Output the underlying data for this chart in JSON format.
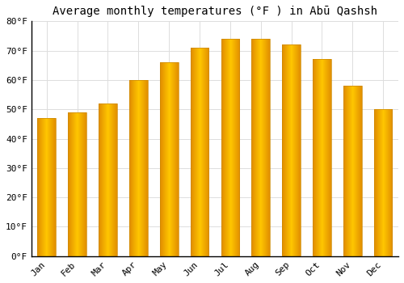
{
  "title": "Average monthly temperatures (°F ) in Abū Qashsh",
  "months": [
    "Jan",
    "Feb",
    "Mar",
    "Apr",
    "May",
    "Jun",
    "Jul",
    "Aug",
    "Sep",
    "Oct",
    "Nov",
    "Dec"
  ],
  "values": [
    47,
    49,
    52,
    60,
    66,
    71,
    74,
    74,
    72,
    67,
    58,
    50
  ],
  "bar_color_center": "#FFB300",
  "bar_color_edge": "#F5A000",
  "bar_edge_color": "#CC8800",
  "ylim": [
    0,
    80
  ],
  "yticks": [
    0,
    10,
    20,
    30,
    40,
    50,
    60,
    70,
    80
  ],
  "ytick_labels": [
    "0°F",
    "10°F",
    "20°F",
    "30°F",
    "40°F",
    "50°F",
    "60°F",
    "70°F",
    "80°F"
  ],
  "bg_color": "#ffffff",
  "grid_color": "#dddddd",
  "title_fontsize": 10,
  "tick_fontsize": 8,
  "bar_width": 0.6
}
